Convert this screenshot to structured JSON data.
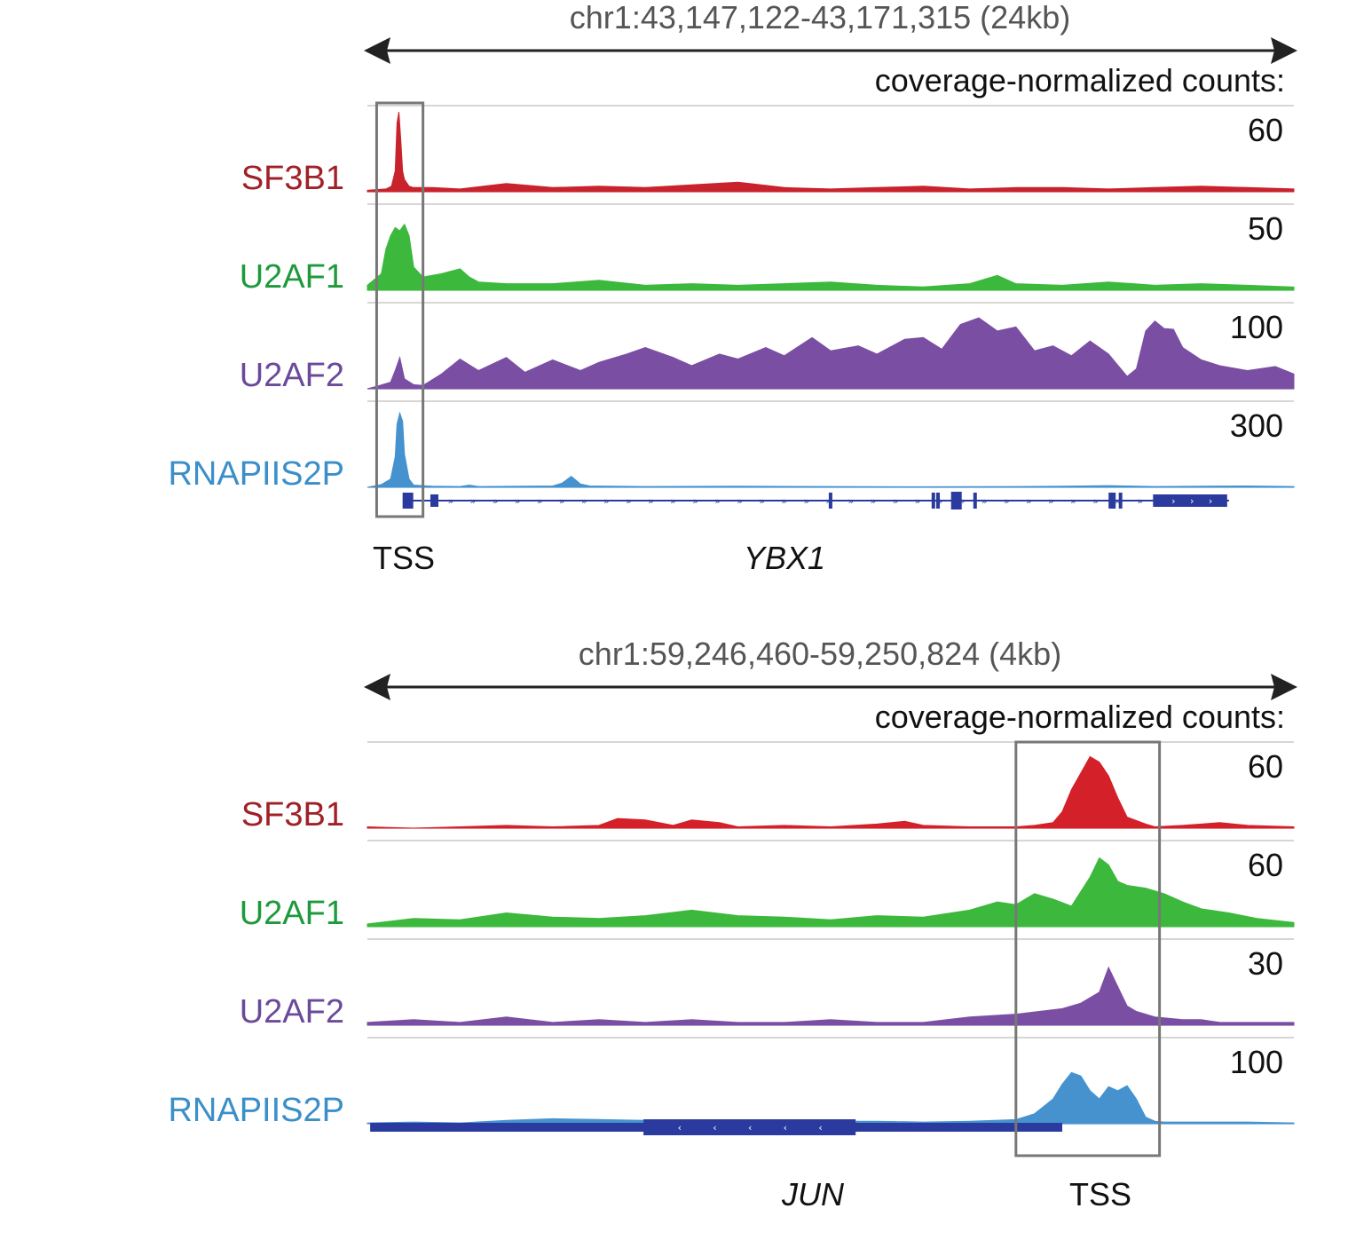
{
  "chart_data": [
    {
      "type": "area",
      "region": "chr1:43,147,122-43,171,315 (24kb)",
      "units_label": "coverage-normalized counts:",
      "gene": "YBX1",
      "tss_label": "TSS",
      "strand": "+",
      "tss_window": [
        0.01,
        0.06
      ],
      "tracks": [
        {
          "name": "SF3B1",
          "color": "#c8232c",
          "label_color": "#a02028",
          "scale_max": "60",
          "x": [
            0,
            0.02,
            0.026,
            0.03,
            0.032,
            0.034,
            0.036,
            0.038,
            0.04,
            0.045,
            0.05,
            0.07,
            0.1,
            0.15,
            0.2,
            0.25,
            0.3,
            0.35,
            0.4,
            0.45,
            0.5,
            0.55,
            0.6,
            0.65,
            0.7,
            0.75,
            0.8,
            0.85,
            0.9,
            0.95,
            1.0
          ],
          "values": [
            1,
            2,
            4,
            15,
            50,
            58,
            38,
            15,
            9,
            4,
            3,
            3,
            2,
            6,
            3,
            4,
            3,
            5,
            7,
            3,
            2,
            3,
            4,
            2,
            3,
            3,
            2,
            3,
            4,
            3,
            2
          ]
        },
        {
          "name": "U2AF1",
          "color": "#3cb83c",
          "label_color": "#1e9a3c",
          "scale_max": "50",
          "x": [
            0,
            0.015,
            0.02,
            0.025,
            0.03,
            0.035,
            0.04,
            0.045,
            0.05,
            0.06,
            0.08,
            0.1,
            0.11,
            0.12,
            0.15,
            0.2,
            0.25,
            0.3,
            0.35,
            0.4,
            0.45,
            0.5,
            0.55,
            0.6,
            0.65,
            0.68,
            0.7,
            0.75,
            0.8,
            0.85,
            0.9,
            0.95,
            1.0
          ],
          "values": [
            3,
            10,
            25,
            33,
            38,
            36,
            40,
            33,
            14,
            8,
            10,
            13,
            8,
            5,
            4,
            4,
            6,
            3,
            4,
            3,
            4,
            5,
            3,
            2,
            4,
            9,
            4,
            3,
            5,
            3,
            4,
            3,
            2
          ]
        },
        {
          "name": "U2AF2",
          "color": "#7a4fa3",
          "label_color": "#6b4a9a",
          "scale_max": "100",
          "x": [
            0,
            0.01,
            0.025,
            0.03,
            0.035,
            0.04,
            0.05,
            0.06,
            0.08,
            0.1,
            0.12,
            0.15,
            0.17,
            0.2,
            0.23,
            0.25,
            0.28,
            0.3,
            0.33,
            0.35,
            0.38,
            0.4,
            0.43,
            0.45,
            0.48,
            0.5,
            0.53,
            0.55,
            0.58,
            0.6,
            0.62,
            0.64,
            0.66,
            0.68,
            0.7,
            0.72,
            0.74,
            0.76,
            0.78,
            0.8,
            0.82,
            0.83,
            0.84,
            0.85,
            0.86,
            0.87,
            0.88,
            0.9,
            0.92,
            0.95,
            0.98,
            1.0
          ],
          "values": [
            0,
            3,
            8,
            22,
            38,
            12,
            5,
            4,
            18,
            36,
            22,
            38,
            20,
            35,
            22,
            32,
            42,
            50,
            38,
            28,
            42,
            36,
            50,
            40,
            62,
            46,
            52,
            42,
            60,
            62,
            48,
            78,
            86,
            70,
            75,
            46,
            52,
            40,
            58,
            42,
            15,
            24,
            70,
            82,
            73,
            72,
            50,
            35,
            28,
            22,
            27,
            18
          ]
        },
        {
          "name": "RNAPIIS2P",
          "color": "#4592cf",
          "label_color": "#3a8fc9",
          "scale_max": "300",
          "x": [
            0,
            0.015,
            0.025,
            0.03,
            0.032,
            0.035,
            0.038,
            0.04,
            0.045,
            0.05,
            0.07,
            0.1,
            0.11,
            0.12,
            0.2,
            0.21,
            0.22,
            0.23,
            0.24,
            0.3,
            0.4,
            0.5,
            0.6,
            0.7,
            0.75,
            0.8,
            0.85,
            0.9,
            0.95,
            1.0
          ],
          "values": [
            0,
            10,
            30,
            110,
            230,
            270,
            240,
            120,
            30,
            8,
            4,
            3,
            8,
            3,
            5,
            15,
            40,
            12,
            5,
            3,
            4,
            3,
            2,
            3,
            4,
            6,
            3,
            4,
            5,
            3
          ]
        }
      ]
    },
    {
      "type": "area",
      "region": "chr1:59,246,460-59,250,824 (4kb)",
      "units_label": "coverage-normalized counts:",
      "gene": "JUN",
      "tss_label": "TSS",
      "strand": "-",
      "tss_window": [
        0.7,
        0.855
      ],
      "tracks": [
        {
          "name": "SF3B1",
          "color": "#d42028",
          "label_color": "#a02028",
          "scale_max": "60",
          "x": [
            0,
            0.05,
            0.1,
            0.15,
            0.2,
            0.25,
            0.27,
            0.3,
            0.33,
            0.35,
            0.38,
            0.4,
            0.45,
            0.5,
            0.55,
            0.58,
            0.6,
            0.65,
            0.7,
            0.72,
            0.74,
            0.75,
            0.76,
            0.77,
            0.78,
            0.79,
            0.8,
            0.81,
            0.82,
            0.84,
            0.85,
            0.88,
            0.9,
            0.92,
            0.95,
            1.0
          ],
          "values": [
            1,
            0,
            1,
            2,
            1,
            2,
            7,
            6,
            2,
            6,
            4,
            1,
            2,
            1,
            3,
            5,
            2,
            1,
            1,
            2,
            4,
            12,
            28,
            40,
            52,
            48,
            38,
            22,
            8,
            3,
            1,
            2,
            3,
            4,
            2,
            1
          ]
        },
        {
          "name": "U2AF1",
          "color": "#3cb83c",
          "label_color": "#1e9a3c",
          "scale_max": "60",
          "x": [
            0,
            0.05,
            0.1,
            0.15,
            0.2,
            0.25,
            0.3,
            0.35,
            0.4,
            0.45,
            0.5,
            0.55,
            0.6,
            0.65,
            0.68,
            0.7,
            0.72,
            0.74,
            0.76,
            0.78,
            0.79,
            0.8,
            0.81,
            0.82,
            0.84,
            0.86,
            0.88,
            0.9,
            0.93,
            0.96,
            1.0
          ],
          "values": [
            2,
            6,
            5,
            10,
            7,
            6,
            8,
            12,
            8,
            7,
            5,
            8,
            7,
            12,
            18,
            16,
            24,
            20,
            15,
            36,
            50,
            45,
            33,
            30,
            28,
            24,
            18,
            13,
            10,
            6,
            3
          ]
        },
        {
          "name": "U2AF2",
          "color": "#7a4fa3",
          "label_color": "#6b4a9a",
          "scale_max": "30",
          "x": [
            0,
            0.05,
            0.1,
            0.15,
            0.2,
            0.25,
            0.3,
            0.35,
            0.4,
            0.45,
            0.5,
            0.55,
            0.6,
            0.65,
            0.7,
            0.75,
            0.77,
            0.79,
            0.8,
            0.81,
            0.82,
            0.83,
            0.85,
            0.88,
            0.9,
            0.92,
            0.95,
            1.0
          ],
          "values": [
            1,
            2,
            1,
            3,
            1,
            2,
            1,
            2,
            1,
            1,
            2,
            1,
            1,
            3,
            4,
            6,
            8,
            12,
            21,
            14,
            7,
            5,
            3,
            2,
            2,
            1,
            1,
            1
          ]
        },
        {
          "name": "RNAPIIS2P",
          "color": "#4592cf",
          "label_color": "#3a8fc9",
          "scale_max": "100",
          "x": [
            0,
            0.05,
            0.1,
            0.15,
            0.2,
            0.25,
            0.3,
            0.35,
            0.4,
            0.45,
            0.5,
            0.55,
            0.6,
            0.65,
            0.7,
            0.72,
            0.74,
            0.75,
            0.76,
            0.77,
            0.78,
            0.79,
            0.8,
            0.81,
            0.82,
            0.83,
            0.84,
            0.85,
            0.86,
            0.88,
            0.9,
            0.95,
            1.0
          ],
          "values": [
            1,
            2,
            1,
            4,
            6,
            5,
            4,
            3,
            3,
            4,
            3,
            3,
            2,
            3,
            5,
            12,
            30,
            48,
            62,
            58,
            40,
            30,
            45,
            40,
            46,
            30,
            8,
            3,
            2,
            2,
            2,
            2,
            1
          ]
        }
      ]
    }
  ]
}
